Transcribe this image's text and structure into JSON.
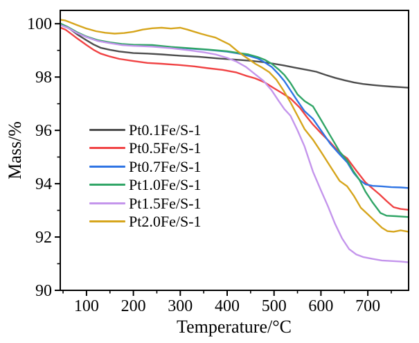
{
  "figure": {
    "background": "#ffffff",
    "axis_color": "#000000",
    "text_color": "#000000"
  },
  "chart_data": {
    "type": "line",
    "title": "",
    "xlabel": "Temperature/°C",
    "ylabel": "Mass/%",
    "xlim": [
      44,
      787
    ],
    "ylim": [
      90,
      100.5
    ],
    "xticks": [
      100,
      200,
      300,
      400,
      500,
      600,
      700
    ],
    "xminorticks": [
      50,
      150,
      250,
      350,
      450,
      550,
      650,
      750
    ],
    "yticks": [
      90,
      92,
      94,
      96,
      98,
      100
    ],
    "yminorticks": [
      91,
      93,
      95,
      97,
      99
    ],
    "grid": false,
    "legend_position": "inside-middle-left",
    "series": [
      {
        "name": "Pt0.1Fe/S-1",
        "color": "#4d4d4d",
        "points": [
          [
            45,
            99.95
          ],
          [
            55,
            99.9
          ],
          [
            65,
            99.8
          ],
          [
            80,
            99.6
          ],
          [
            100,
            99.38
          ],
          [
            115,
            99.22
          ],
          [
            130,
            99.1
          ],
          [
            150,
            99.02
          ],
          [
            170,
            98.96
          ],
          [
            200,
            98.9
          ],
          [
            230,
            98.88
          ],
          [
            260,
            98.85
          ],
          [
            300,
            98.8
          ],
          [
            340,
            98.76
          ],
          [
            380,
            98.7
          ],
          [
            420,
            98.65
          ],
          [
            450,
            98.61
          ],
          [
            480,
            98.55
          ],
          [
            500,
            98.5
          ],
          [
            520,
            98.44
          ],
          [
            545,
            98.35
          ],
          [
            570,
            98.27
          ],
          [
            590,
            98.2
          ],
          [
            610,
            98.08
          ],
          [
            630,
            97.97
          ],
          [
            650,
            97.88
          ],
          [
            670,
            97.8
          ],
          [
            690,
            97.74
          ],
          [
            710,
            97.7
          ],
          [
            730,
            97.67
          ],
          [
            750,
            97.64
          ],
          [
            770,
            97.62
          ],
          [
            787,
            97.6
          ]
        ]
      },
      {
        "name": "Pt0.5Fe/S-1",
        "color": "#f04243",
        "points": [
          [
            45,
            99.85
          ],
          [
            55,
            99.78
          ],
          [
            65,
            99.65
          ],
          [
            80,
            99.45
          ],
          [
            100,
            99.2
          ],
          [
            115,
            99.02
          ],
          [
            130,
            98.88
          ],
          [
            150,
            98.77
          ],
          [
            170,
            98.68
          ],
          [
            200,
            98.6
          ],
          [
            230,
            98.53
          ],
          [
            260,
            98.5
          ],
          [
            300,
            98.45
          ],
          [
            330,
            98.4
          ],
          [
            360,
            98.33
          ],
          [
            390,
            98.27
          ],
          [
            420,
            98.17
          ],
          [
            440,
            98.05
          ],
          [
            460,
            97.95
          ],
          [
            480,
            97.8
          ],
          [
            500,
            97.58
          ],
          [
            515,
            97.42
          ],
          [
            535,
            97.2
          ],
          [
            555,
            96.85
          ],
          [
            570,
            96.5
          ],
          [
            583,
            96.22
          ],
          [
            600,
            95.9
          ],
          [
            620,
            95.55
          ],
          [
            640,
            95.15
          ],
          [
            656,
            94.95
          ],
          [
            675,
            94.5
          ],
          [
            695,
            94.05
          ],
          [
            710,
            93.82
          ],
          [
            725,
            93.6
          ],
          [
            740,
            93.35
          ],
          [
            755,
            93.12
          ],
          [
            770,
            93.05
          ],
          [
            787,
            93.02
          ]
        ]
      },
      {
        "name": "Pt0.7Fe/S-1",
        "color": "#2e74e4",
        "points": [
          [
            45,
            99.95
          ],
          [
            60,
            99.85
          ],
          [
            80,
            99.65
          ],
          [
            100,
            99.5
          ],
          [
            125,
            99.35
          ],
          [
            150,
            99.28
          ],
          [
            175,
            99.23
          ],
          [
            200,
            99.2
          ],
          [
            240,
            99.17
          ],
          [
            280,
            99.12
          ],
          [
            320,
            99.07
          ],
          [
            360,
            99.02
          ],
          [
            400,
            98.95
          ],
          [
            425,
            98.88
          ],
          [
            445,
            98.8
          ],
          [
            465,
            98.7
          ],
          [
            480,
            98.55
          ],
          [
            495,
            98.38
          ],
          [
            510,
            98.1
          ],
          [
            522,
            97.85
          ],
          [
            535,
            97.5
          ],
          [
            550,
            97.1
          ],
          [
            565,
            96.72
          ],
          [
            583,
            96.43
          ],
          [
            600,
            96.0
          ],
          [
            620,
            95.5
          ],
          [
            640,
            95.1
          ],
          [
            656,
            94.8
          ],
          [
            670,
            94.4
          ],
          [
            682,
            94.15
          ],
          [
            695,
            93.98
          ],
          [
            710,
            93.92
          ],
          [
            730,
            93.9
          ],
          [
            750,
            93.87
          ],
          [
            770,
            93.86
          ],
          [
            787,
            93.84
          ]
        ]
      },
      {
        "name": "Pt1.0Fe/S-1",
        "color": "#30a566",
        "points": [
          [
            45,
            100.0
          ],
          [
            60,
            99.88
          ],
          [
            80,
            99.68
          ],
          [
            100,
            99.52
          ],
          [
            125,
            99.38
          ],
          [
            150,
            99.3
          ],
          [
            175,
            99.24
          ],
          [
            200,
            99.21
          ],
          [
            240,
            99.2
          ],
          [
            280,
            99.13
          ],
          [
            320,
            99.08
          ],
          [
            360,
            99.03
          ],
          [
            400,
            98.97
          ],
          [
            425,
            98.9
          ],
          [
            445,
            98.85
          ],
          [
            465,
            98.75
          ],
          [
            480,
            98.65
          ],
          [
            495,
            98.5
          ],
          [
            510,
            98.28
          ],
          [
            522,
            98.08
          ],
          [
            535,
            97.78
          ],
          [
            550,
            97.35
          ],
          [
            565,
            97.1
          ],
          [
            583,
            96.9
          ],
          [
            600,
            96.4
          ],
          [
            620,
            95.8
          ],
          [
            640,
            95.2
          ],
          [
            656,
            94.87
          ],
          [
            670,
            94.45
          ],
          [
            682,
            94.15
          ],
          [
            695,
            93.7
          ],
          [
            710,
            93.3
          ],
          [
            727,
            92.9
          ],
          [
            740,
            92.8
          ],
          [
            760,
            92.78
          ],
          [
            787,
            92.75
          ]
        ]
      },
      {
        "name": "Pt1.5Fe/S-1",
        "color": "#c495ec",
        "points": [
          [
            45,
            99.95
          ],
          [
            60,
            99.85
          ],
          [
            80,
            99.65
          ],
          [
            100,
            99.5
          ],
          [
            125,
            99.35
          ],
          [
            150,
            99.27
          ],
          [
            175,
            99.2
          ],
          [
            200,
            99.17
          ],
          [
            240,
            99.14
          ],
          [
            280,
            99.08
          ],
          [
            320,
            99.0
          ],
          [
            350,
            98.93
          ],
          [
            375,
            98.85
          ],
          [
            400,
            98.72
          ],
          [
            420,
            98.58
          ],
          [
            440,
            98.38
          ],
          [
            460,
            98.1
          ],
          [
            478,
            97.85
          ],
          [
            495,
            97.5
          ],
          [
            510,
            97.1
          ],
          [
            522,
            96.8
          ],
          [
            535,
            96.55
          ],
          [
            550,
            96.0
          ],
          [
            565,
            95.4
          ],
          [
            583,
            94.45
          ],
          [
            600,
            93.75
          ],
          [
            615,
            93.15
          ],
          [
            630,
            92.5
          ],
          [
            645,
            91.95
          ],
          [
            660,
            91.55
          ],
          [
            675,
            91.35
          ],
          [
            690,
            91.25
          ],
          [
            710,
            91.18
          ],
          [
            730,
            91.12
          ],
          [
            750,
            91.1
          ],
          [
            770,
            91.08
          ],
          [
            787,
            91.05
          ]
        ]
      },
      {
        "name": "Pt2.0Fe/S-1",
        "color": "#d6a51c",
        "points": [
          [
            45,
            100.15
          ],
          [
            55,
            100.12
          ],
          [
            65,
            100.05
          ],
          [
            80,
            99.95
          ],
          [
            100,
            99.82
          ],
          [
            120,
            99.72
          ],
          [
            140,
            99.66
          ],
          [
            160,
            99.63
          ],
          [
            180,
            99.65
          ],
          [
            200,
            99.7
          ],
          [
            220,
            99.78
          ],
          [
            240,
            99.83
          ],
          [
            260,
            99.85
          ],
          [
            280,
            99.82
          ],
          [
            300,
            99.85
          ],
          [
            315,
            99.78
          ],
          [
            330,
            99.7
          ],
          [
            345,
            99.62
          ],
          [
            360,
            99.55
          ],
          [
            375,
            99.48
          ],
          [
            390,
            99.35
          ],
          [
            405,
            99.22
          ],
          [
            420,
            99.0
          ],
          [
            435,
            98.8
          ],
          [
            445,
            98.68
          ],
          [
            460,
            98.5
          ],
          [
            475,
            98.35
          ],
          [
            490,
            98.18
          ],
          [
            505,
            97.9
          ],
          [
            520,
            97.5
          ],
          [
            535,
            97.05
          ],
          [
            550,
            96.55
          ],
          [
            565,
            96.05
          ],
          [
            583,
            95.65
          ],
          [
            600,
            95.2
          ],
          [
            620,
            94.65
          ],
          [
            640,
            94.1
          ],
          [
            656,
            93.9
          ],
          [
            670,
            93.55
          ],
          [
            685,
            93.1
          ],
          [
            700,
            92.85
          ],
          [
            715,
            92.6
          ],
          [
            730,
            92.35
          ],
          [
            742,
            92.22
          ],
          [
            755,
            92.2
          ],
          [
            770,
            92.25
          ],
          [
            787,
            92.2
          ]
        ]
      }
    ]
  }
}
